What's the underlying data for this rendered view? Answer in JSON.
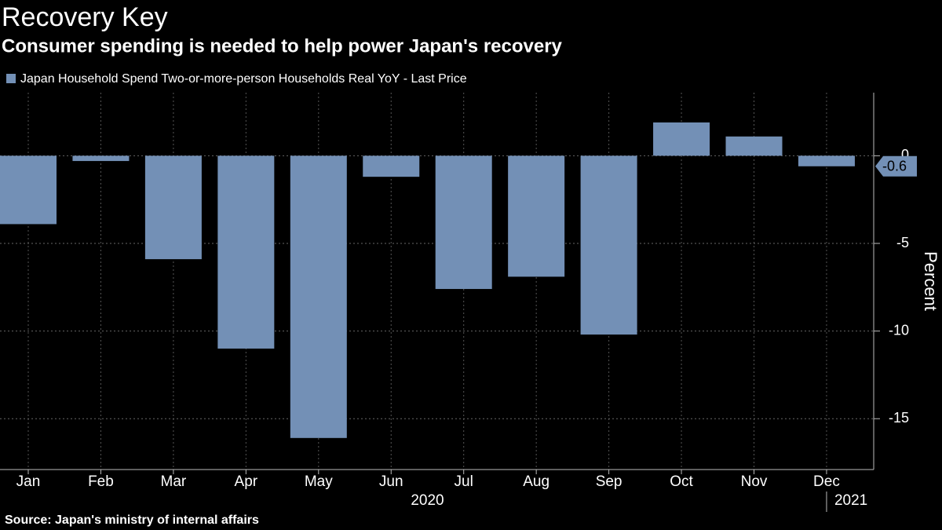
{
  "chart_data": {
    "type": "bar",
    "title": "Recovery Key",
    "subtitle": "Consumer spending is needed to help power Japan's recovery",
    "source": "Source: Japan's ministry of internal affairs",
    "y_label": "Percent",
    "categories": [
      "Jan",
      "Feb",
      "Mar",
      "Apr",
      "May",
      "Jun",
      "Jul",
      "Aug",
      "Sep",
      "Oct",
      "Nov",
      "Dec"
    ],
    "year_labels": [
      "2020",
      "2021"
    ],
    "series": [
      {
        "name": "Japan Household Spend Two-or-more-person Households Real YoY - Last Price",
        "color": "#7390b6",
        "values": [
          -3.9,
          -0.3,
          -5.9,
          -11.0,
          -16.1,
          -1.2,
          -7.6,
          -6.9,
          -10.2,
          1.9,
          1.1,
          -0.6
        ]
      }
    ],
    "ylim": [
      -17.9,
      3.6
    ],
    "yticks": [
      0,
      -5,
      -10,
      -15
    ],
    "grid": true
  }
}
